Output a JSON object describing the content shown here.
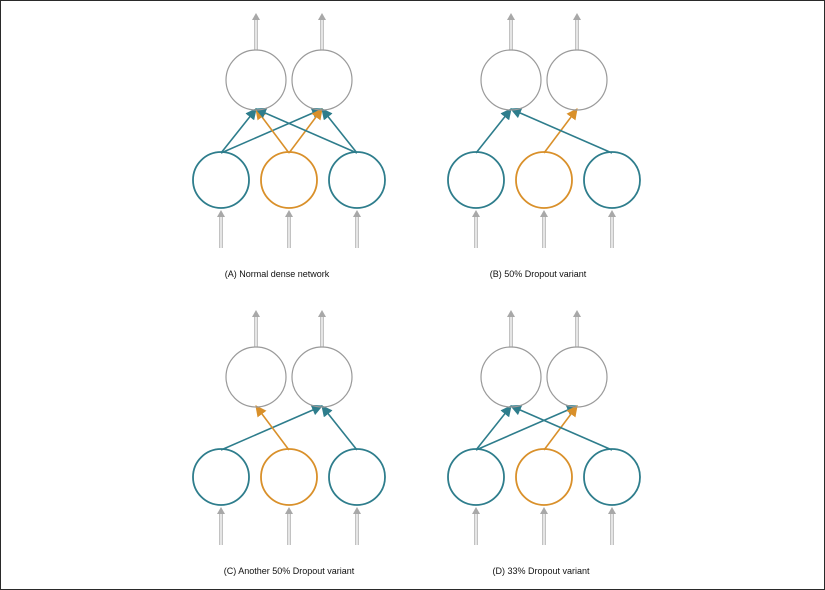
{
  "colors": {
    "input_node": "#2e7d8c",
    "dropped_node": "#d9902a",
    "output_node": "#9a9a9a",
    "conn_input": "#2e7d8c",
    "conn_dropped": "#d9902a",
    "arrow_grey": "#a8a8a8"
  },
  "panels": [
    {
      "id": "A",
      "caption": "(A) Normal dense network",
      "connections": [
        [
          0,
          0
        ],
        [
          0,
          1
        ],
        [
          1,
          0
        ],
        [
          1,
          1
        ],
        [
          2,
          0
        ],
        [
          2,
          1
        ]
      ]
    },
    {
      "id": "B",
      "caption": "(B) 50% Dropout variant",
      "connections": [
        [
          0,
          0
        ],
        [
          1,
          1
        ],
        [
          2,
          0
        ]
      ]
    },
    {
      "id": "C",
      "caption": "(C) Another 50% Dropout variant",
      "connections": [
        [
          0,
          1
        ],
        [
          1,
          0
        ],
        [
          2,
          1
        ]
      ]
    },
    {
      "id": "D",
      "caption": "(D) 33% Dropout variant",
      "connections": [
        [
          0,
          0
        ],
        [
          0,
          1
        ],
        [
          1,
          1
        ],
        [
          2,
          0
        ]
      ]
    }
  ]
}
